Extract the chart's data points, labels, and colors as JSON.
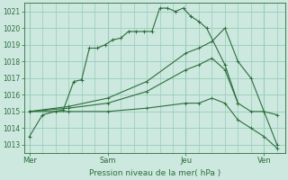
{
  "xlabel": "Pression niveau de la mer( hPa )",
  "bg_color": "#cce8df",
  "grid_color": "#99ccbb",
  "line_color": "#2d6e3a",
  "ylim": [
    1012.5,
    1021.5
  ],
  "yticks": [
    1013,
    1014,
    1015,
    1016,
    1017,
    1018,
    1019,
    1020,
    1021
  ],
  "xlim": [
    -0.2,
    9.8
  ],
  "day_labels": [
    "Mer",
    "Sam",
    "Jeu",
    "Ven"
  ],
  "day_positions": [
    0,
    3,
    6,
    9
  ],
  "lines": [
    {
      "x": [
        0.0,
        0.5,
        1.0,
        1.3,
        1.7,
        2.0,
        2.3,
        2.6,
        2.9,
        3.2,
        3.5,
        3.8,
        4.1,
        4.4,
        4.7,
        5.0,
        5.3,
        5.6,
        5.9,
        6.2,
        6.5,
        6.8,
        7.5,
        8.0
      ],
      "y": [
        1013.5,
        1014.8,
        1015.0,
        1015.1,
        1016.8,
        1016.9,
        1018.8,
        1018.8,
        1019.0,
        1019.3,
        1019.4,
        1019.8,
        1019.8,
        1019.8,
        1019.8,
        1021.2,
        1021.2,
        1021.0,
        1021.2,
        1020.7,
        1020.4,
        1020.0,
        1017.8,
        1015.5
      ]
    },
    {
      "x": [
        0.0,
        1.5,
        3.0,
        4.5,
        6.0,
        6.5,
        7.0,
        7.5,
        8.0,
        8.5,
        9.0,
        9.5
      ],
      "y": [
        1015.0,
        1015.3,
        1015.8,
        1016.8,
        1018.5,
        1018.8,
        1019.2,
        1020.0,
        1018.0,
        1017.0,
        1015.0,
        1013.0
      ]
    },
    {
      "x": [
        0.0,
        1.5,
        3.0,
        4.5,
        6.0,
        6.5,
        7.0,
        7.5,
        8.0,
        8.5,
        9.0,
        9.5
      ],
      "y": [
        1015.0,
        1015.2,
        1015.5,
        1016.2,
        1017.5,
        1017.8,
        1018.2,
        1017.5,
        1015.5,
        1015.0,
        1015.0,
        1014.8
      ]
    },
    {
      "x": [
        0.0,
        1.5,
        3.0,
        4.5,
        6.0,
        6.5,
        7.0,
        7.5,
        8.0,
        8.5,
        9.0,
        9.5
      ],
      "y": [
        1015.0,
        1015.0,
        1015.0,
        1015.2,
        1015.5,
        1015.5,
        1015.8,
        1015.5,
        1014.5,
        1014.0,
        1013.5,
        1012.8
      ]
    }
  ]
}
